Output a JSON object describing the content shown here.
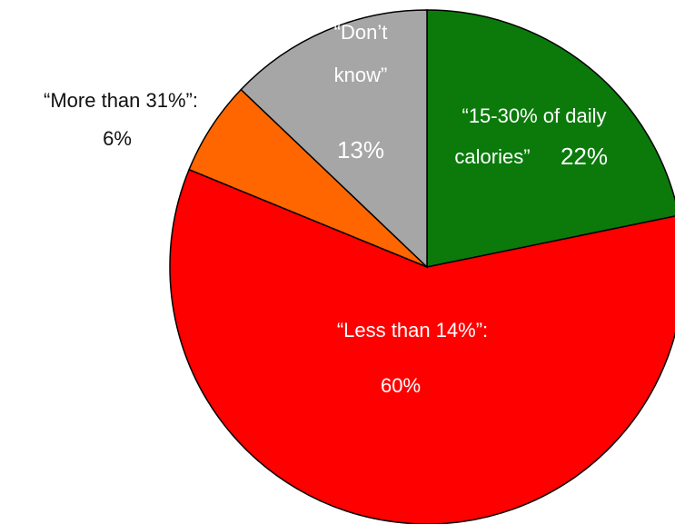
{
  "chart_data": {
    "type": "pie",
    "title": "",
    "slices": [
      {
        "line1": "“15-30% of daily",
        "line2": "calories”",
        "value_label": "22%",
        "value": 22,
        "color": "#0b7a0b"
      },
      {
        "line1": "“Less than 14%”:",
        "line2": "",
        "value_label": "60%",
        "value": 60,
        "color": "#ff0000"
      },
      {
        "line1": "“More than 31%”:",
        "line2": "",
        "value_label": "6%",
        "value": 6,
        "color": "#ff6600"
      },
      {
        "line1": "“Don’t",
        "line2": "know”",
        "value_label": "13%",
        "value": 13,
        "color": "#a6a6a6"
      }
    ]
  }
}
